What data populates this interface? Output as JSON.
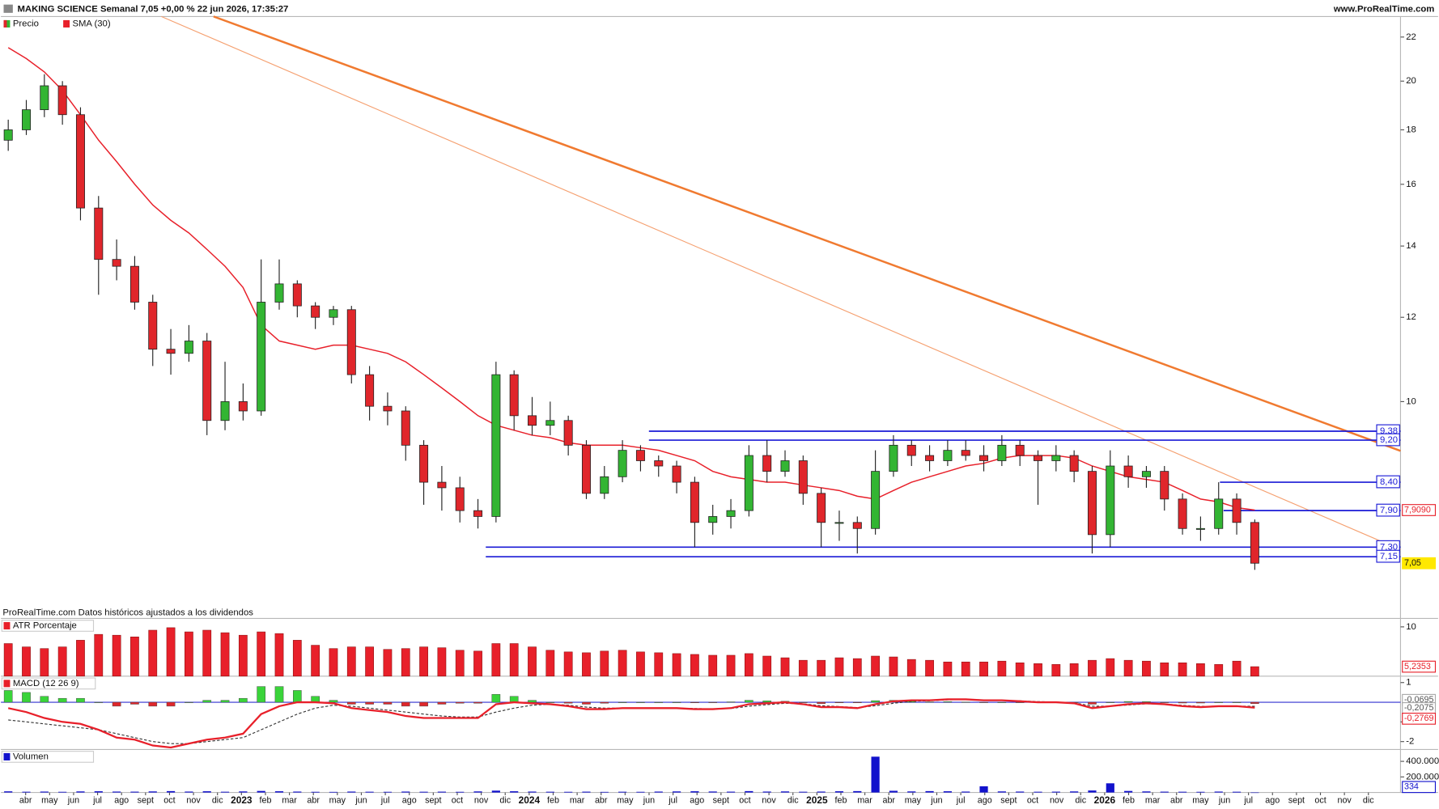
{
  "header": {
    "title": "MAKING SCIENCE Semanal 7,05 +0,00 % 22 jun 2026, 17:35:27",
    "site": "www.ProRealTime.com"
  },
  "note": "ProRealTime.com Datos históricos ajustados a los dividendos",
  "time_axis": [
    "abr",
    "may",
    "jun",
    "jul",
    "ago",
    "sept",
    "oct",
    "nov",
    "dic",
    "2023",
    "feb",
    "mar",
    "abr",
    "may",
    "jun",
    "jul",
    "ago",
    "sept",
    "oct",
    "nov",
    "dic",
    "2024",
    "feb",
    "mar",
    "abr",
    "may",
    "jun",
    "jul",
    "ago",
    "sept",
    "oct",
    "nov",
    "dic",
    "2025",
    "feb",
    "mar",
    "abr",
    "may",
    "jun",
    "jul",
    "ago",
    "sept",
    "oct",
    "nov",
    "dic",
    "2026",
    "feb",
    "mar",
    "abr",
    "may",
    "jun",
    "jul",
    "ago",
    "sept",
    "oct",
    "nov",
    "dic"
  ],
  "chart_data": [
    {
      "type": "candlestick",
      "log": true,
      "ylim": [
        6.42,
        23
      ],
      "yticks": [
        10,
        12,
        14,
        16,
        18,
        20,
        22
      ],
      "up_color": "#33b533",
      "down_color": "#e0262b",
      "series": [
        {
          "name": "Precio",
          "last_label": "7,05",
          "values": [
            [
              17.6,
              18.4,
              17.2,
              18.0
            ],
            [
              18.0,
              19.2,
              17.8,
              18.8
            ],
            [
              18.8,
              20.3,
              18.5,
              19.8
            ],
            [
              19.8,
              20.0,
              18.2,
              18.6
            ],
            [
              18.6,
              18.9,
              14.8,
              15.2
            ],
            [
              15.2,
              15.6,
              12.6,
              13.6
            ],
            [
              13.6,
              14.2,
              13.0,
              13.4
            ],
            [
              13.4,
              13.7,
              12.2,
              12.4
            ],
            [
              12.4,
              12.6,
              10.8,
              11.2
            ],
            [
              11.2,
              11.7,
              10.6,
              11.1
            ],
            [
              11.1,
              11.8,
              10.9,
              11.4
            ],
            [
              11.4,
              11.6,
              9.3,
              9.6
            ],
            [
              9.6,
              10.9,
              9.4,
              10.0
            ],
            [
              10.0,
              10.4,
              9.6,
              9.8
            ],
            [
              9.8,
              13.6,
              9.7,
              12.4
            ],
            [
              12.4,
              13.6,
              12.2,
              12.9
            ],
            [
              12.9,
              13.0,
              12.0,
              12.3
            ],
            [
              12.3,
              12.4,
              11.7,
              12.0
            ],
            [
              12.0,
              12.3,
              11.8,
              12.2
            ],
            [
              12.2,
              12.3,
              10.4,
              10.6
            ],
            [
              10.6,
              10.8,
              9.6,
              9.9
            ],
            [
              9.9,
              10.2,
              9.5,
              9.8
            ],
            [
              9.8,
              9.9,
              8.8,
              9.1
            ],
            [
              9.1,
              9.2,
              8.0,
              8.4
            ],
            [
              8.4,
              8.7,
              7.9,
              8.3
            ],
            [
              8.3,
              8.5,
              7.7,
              7.9
            ],
            [
              7.9,
              8.1,
              7.6,
              7.8
            ],
            [
              7.8,
              10.9,
              7.7,
              10.6
            ],
            [
              10.6,
              10.7,
              9.4,
              9.7
            ],
            [
              9.7,
              10.1,
              9.3,
              9.5
            ],
            [
              9.5,
              10.0,
              9.3,
              9.6
            ],
            [
              9.6,
              9.7,
              8.9,
              9.1
            ],
            [
              9.1,
              9.2,
              8.1,
              8.2
            ],
            [
              8.2,
              8.7,
              8.1,
              8.5
            ],
            [
              8.5,
              9.2,
              8.4,
              9.0
            ],
            [
              9.0,
              9.1,
              8.6,
              8.8
            ],
            [
              8.8,
              8.9,
              8.5,
              8.7
            ],
            [
              8.7,
              8.8,
              8.2,
              8.4
            ],
            [
              8.4,
              8.5,
              7.3,
              7.7
            ],
            [
              7.7,
              8.0,
              7.5,
              7.8
            ],
            [
              7.8,
              8.1,
              7.6,
              7.9
            ],
            [
              7.9,
              9.1,
              7.8,
              8.9
            ],
            [
              8.9,
              9.2,
              8.4,
              8.6
            ],
            [
              8.6,
              9.0,
              8.5,
              8.8
            ],
            [
              8.8,
              8.9,
              8.0,
              8.2
            ],
            [
              8.2,
              8.3,
              7.3,
              7.7
            ],
            [
              7.7,
              7.9,
              7.4,
              7.7
            ],
            [
              7.7,
              7.8,
              7.2,
              7.6
            ],
            [
              7.6,
              9.0,
              7.5,
              8.6
            ],
            [
              8.6,
              9.3,
              8.5,
              9.1
            ],
            [
              9.1,
              9.2,
              8.7,
              8.9
            ],
            [
              8.9,
              9.1,
              8.6,
              8.8
            ],
            [
              8.8,
              9.2,
              8.7,
              9.0
            ],
            [
              9.0,
              9.2,
              8.8,
              8.9
            ],
            [
              8.9,
              9.1,
              8.6,
              8.8
            ],
            [
              8.8,
              9.3,
              8.7,
              9.1
            ],
            [
              9.1,
              9.2,
              8.7,
              8.9
            ],
            [
              8.9,
              9.0,
              8.0,
              8.8
            ],
            [
              8.8,
              9.1,
              8.6,
              8.9
            ],
            [
              8.9,
              9.0,
              8.4,
              8.6
            ],
            [
              8.6,
              8.7,
              7.2,
              7.5
            ],
            [
              7.5,
              9.0,
              7.3,
              8.7
            ],
            [
              8.7,
              8.9,
              8.3,
              8.5
            ],
            [
              8.5,
              8.7,
              8.3,
              8.6
            ],
            [
              8.6,
              8.7,
              7.9,
              8.1
            ],
            [
              8.1,
              8.2,
              7.5,
              7.6
            ],
            [
              7.6,
              7.8,
              7.4,
              7.6
            ],
            [
              7.6,
              8.4,
              7.5,
              8.1
            ],
            [
              8.1,
              8.2,
              7.5,
              7.7
            ],
            [
              7.7,
              7.75,
              6.95,
              7.05
            ]
          ]
        },
        {
          "name": "SMA (30)",
          "color": "#e8202a",
          "last_label": "7,9090",
          "values": [
            21.5,
            21.0,
            20.4,
            19.6,
            18.6,
            17.6,
            16.8,
            16.0,
            15.3,
            14.8,
            14.4,
            13.9,
            13.4,
            12.8,
            11.8,
            11.4,
            11.3,
            11.2,
            11.3,
            11.3,
            11.2,
            11.1,
            10.9,
            10.6,
            10.3,
            10.0,
            9.7,
            9.5,
            9.4,
            9.3,
            9.25,
            9.15,
            9.1,
            9.1,
            9.1,
            9.05,
            9.0,
            8.9,
            8.8,
            8.6,
            8.5,
            8.45,
            8.4,
            8.4,
            8.35,
            8.3,
            8.25,
            8.15,
            8.1,
            8.25,
            8.4,
            8.5,
            8.6,
            8.7,
            8.75,
            8.85,
            8.9,
            8.9,
            8.9,
            8.85,
            8.7,
            8.6,
            8.5,
            8.45,
            8.4,
            8.25,
            8.1,
            8.05,
            7.95,
            7.909
          ]
        }
      ],
      "levels": [
        {
          "value": 9.38,
          "label": "9,38"
        },
        {
          "value": 9.2,
          "label": "9,20"
        },
        {
          "value": 8.4,
          "label": "8,40"
        },
        {
          "value": 7.9,
          "label": "7,90"
        },
        {
          "value": 7.3,
          "label": "7,30"
        },
        {
          "value": 7.15,
          "label": "7,15"
        }
      ],
      "level_color": "#1a1ad6",
      "trendlines": [
        {
          "color": "#f07a30",
          "values": [
            23,
            8.99
          ]
        },
        {
          "color": "#f5a070",
          "values": [
            23,
            7.26
          ]
        }
      ]
    },
    {
      "type": "bar",
      "title": "ATR Porcentaje",
      "color": "#e8202a",
      "ylim": [
        4.1,
        10.9
      ],
      "yticks": [
        10
      ],
      "last_label": "5,2353",
      "values": [
        8.0,
        7.6,
        7.4,
        7.6,
        8.4,
        9.1,
        9.0,
        8.8,
        9.6,
        9.9,
        9.4,
        9.6,
        9.3,
        9.0,
        9.4,
        9.2,
        8.4,
        7.8,
        7.4,
        7.6,
        7.6,
        7.3,
        7.4,
        7.6,
        7.5,
        7.2,
        7.1,
        8.0,
        8.0,
        7.6,
        7.2,
        7.0,
        6.9,
        7.1,
        7.2,
        7.0,
        6.9,
        6.8,
        6.7,
        6.6,
        6.6,
        6.8,
        6.5,
        6.3,
        6.0,
        6.0,
        6.3,
        6.2,
        6.5,
        6.4,
        6.1,
        6.0,
        5.8,
        5.8,
        5.8,
        5.9,
        5.7,
        5.6,
        5.5,
        5.6,
        6.0,
        6.2,
        6.0,
        5.9,
        5.7,
        5.7,
        5.6,
        5.5,
        5.9,
        5.2353
      ]
    },
    {
      "type": "macd",
      "title": "MACD (12 26 9)",
      "ylim": [
        -2.4,
        1.28
      ],
      "yticks": [
        1,
        -1,
        -2
      ],
      "zero_color": "#3030d0",
      "macd": {
        "color": "#e8202a",
        "last_label": "-0,2769",
        "values": [
          -0.3,
          -0.5,
          -0.8,
          -1.0,
          -1.1,
          -1.4,
          -1.8,
          -1.9,
          -2.2,
          -2.3,
          -2.1,
          -1.9,
          -1.8,
          -1.6,
          -0.6,
          -0.2,
          0.0,
          0.0,
          -0.05,
          -0.3,
          -0.4,
          -0.5,
          -0.7,
          -0.8,
          -0.8,
          -0.8,
          -0.8,
          -0.1,
          0.0,
          -0.05,
          -0.1,
          -0.2,
          -0.35,
          -0.35,
          -0.3,
          -0.3,
          -0.3,
          -0.3,
          -0.35,
          -0.35,
          -0.3,
          -0.1,
          -0.05,
          0.0,
          -0.1,
          -0.25,
          -0.25,
          -0.3,
          -0.1,
          0.05,
          0.1,
          0.1,
          0.15,
          0.15,
          0.1,
          0.1,
          0.05,
          0.0,
          0.0,
          -0.05,
          -0.3,
          -0.2,
          -0.1,
          -0.05,
          -0.1,
          -0.2,
          -0.25,
          -0.2,
          -0.2,
          -0.2769
        ]
      },
      "signal": {
        "color": "#333333",
        "last_label": "-0,2075",
        "values": [
          -0.9,
          -1.0,
          -1.1,
          -1.2,
          -1.3,
          -1.4,
          -1.6,
          -1.8,
          -2.0,
          -2.1,
          -2.1,
          -2.0,
          -1.9,
          -1.8,
          -1.4,
          -1.0,
          -0.6,
          -0.3,
          -0.15,
          -0.2,
          -0.3,
          -0.4,
          -0.5,
          -0.6,
          -0.7,
          -0.75,
          -0.75,
          -0.5,
          -0.3,
          -0.15,
          -0.1,
          -0.15,
          -0.25,
          -0.3,
          -0.3,
          -0.3,
          -0.3,
          -0.3,
          -0.32,
          -0.34,
          -0.32,
          -0.2,
          -0.12,
          -0.05,
          -0.08,
          -0.18,
          -0.22,
          -0.27,
          -0.18,
          -0.05,
          0.05,
          0.08,
          0.12,
          0.14,
          0.12,
          0.1,
          0.07,
          0.03,
          0.01,
          -0.03,
          -0.2,
          -0.2,
          -0.14,
          -0.08,
          -0.09,
          -0.16,
          -0.21,
          -0.2,
          -0.2,
          -0.2075
        ]
      },
      "histogram": {
        "up_color": "#3ad43a",
        "down_color": "#e0262b",
        "last_label": "-0,0695",
        "values": [
          0.6,
          0.5,
          0.3,
          0.2,
          0.2,
          0.0,
          -0.2,
          -0.1,
          -0.2,
          -0.2,
          0.0,
          0.1,
          0.1,
          0.2,
          0.8,
          0.8,
          0.6,
          0.3,
          0.1,
          -0.1,
          -0.1,
          -0.1,
          -0.2,
          -0.2,
          -0.1,
          -0.05,
          -0.05,
          0.4,
          0.3,
          0.1,
          0.0,
          -0.05,
          -0.1,
          -0.05,
          0.0,
          0.0,
          0.0,
          0.0,
          -0.03,
          -0.01,
          0.02,
          0.1,
          0.07,
          0.05,
          -0.02,
          -0.07,
          -0.03,
          -0.03,
          0.08,
          0.1,
          0.05,
          0.02,
          0.03,
          0.01,
          -0.02,
          0.0,
          -0.02,
          -0.03,
          -0.01,
          -0.02,
          -0.1,
          0.0,
          0.04,
          0.03,
          -0.01,
          -0.04,
          -0.04,
          0.0,
          0.0,
          -0.0695
        ]
      }
    },
    {
      "type": "bar",
      "title": "Volumen",
      "color": "#1212cc",
      "ylim": [
        0,
        541000
      ],
      "yticks": [
        {
          "value": 200000,
          "label": "200.000"
        },
        {
          "value": 400000,
          "label": "400.000"
        }
      ],
      "last_label": "334",
      "values": [
        15000,
        10000,
        12000,
        9000,
        14000,
        16000,
        12000,
        11000,
        14000,
        18000,
        12000,
        16000,
        10000,
        14000,
        20000,
        16000,
        12000,
        9000,
        8000,
        12000,
        10000,
        9000,
        12000,
        10000,
        11000,
        9000,
        14000,
        24000,
        16000,
        12000,
        10000,
        9000,
        11000,
        8000,
        10000,
        9000,
        12000,
        14000,
        16000,
        13000,
        11000,
        18000,
        12000,
        14000,
        10000,
        12000,
        16000,
        18000,
        460000,
        22000,
        14000,
        18000,
        16000,
        12000,
        80000,
        14000,
        12000,
        10000,
        11000,
        14000,
        26000,
        118000,
        20000,
        14000,
        11000,
        10000,
        9000,
        12000,
        10000,
        334
      ]
    }
  ]
}
